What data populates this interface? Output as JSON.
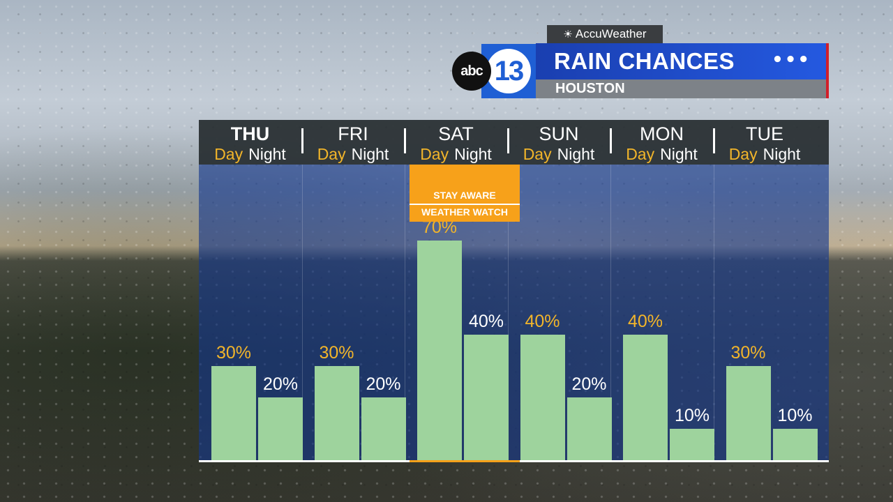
{
  "branding": {
    "accuweather_label": "AccuWeather",
    "sun_icon": "sun-icon",
    "network_logo": "abc",
    "channel_number": "13"
  },
  "title": {
    "main": "RAIN CHANCES",
    "subtitle": "HOUSTON",
    "menu_icon": "ellipsis-icon"
  },
  "alert": {
    "line1": "STAY AWARE",
    "line2": "WEATHER WATCH",
    "day_index": 2,
    "color": "#f7a11a"
  },
  "colors": {
    "bar": "#9ed39d",
    "day_label": "#f2b52a",
    "night_label": "#ffffff",
    "header_bg": "#262c30",
    "plot_bg": "#14378c",
    "title_bg": "#2459e0"
  },
  "chart_data": {
    "type": "bar",
    "title": "RAIN CHANCES",
    "subtitle": "HOUSTON",
    "unit": "%",
    "ylim": [
      0,
      100
    ],
    "categories": [
      "THU",
      "FRI",
      "SAT",
      "SUN",
      "MON",
      "TUE"
    ],
    "period_labels": {
      "day": "Day",
      "night": "Night"
    },
    "series": [
      {
        "name": "Day",
        "values": [
          30,
          30,
          70,
          40,
          40,
          30
        ]
      },
      {
        "name": "Night",
        "values": [
          20,
          20,
          40,
          20,
          10,
          10
        ]
      }
    ],
    "labels": {
      "day": [
        "30%",
        "30%",
        "70%",
        "40%",
        "40%",
        "30%"
      ],
      "night": [
        "20%",
        "20%",
        "40%",
        "20%",
        "10%",
        "10%"
      ]
    },
    "highlight_first_day": true
  }
}
